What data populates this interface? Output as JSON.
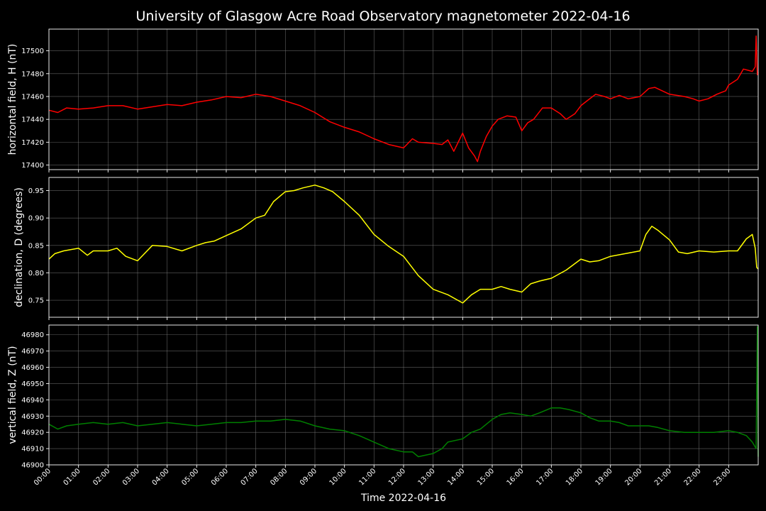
{
  "chart_data": {
    "type": "line",
    "title": "University of Glasgow Acre Road Observatory magnetometer 2022-04-16",
    "xlabel": "Time 2022-04-16",
    "x_ticks": [
      "00:00",
      "01:00",
      "02:00",
      "03:00",
      "04:00",
      "05:00",
      "06:00",
      "07:00",
      "08:00",
      "09:00",
      "10:00",
      "11:00",
      "12:00",
      "13:00",
      "14:00",
      "15:00",
      "16:00",
      "17:00",
      "18:00",
      "19:00",
      "20:00",
      "21:00",
      "22:00",
      "23:00"
    ],
    "xlim_hours": [
      0,
      24
    ],
    "grid": true,
    "background": "#000000",
    "panels": [
      {
        "ylabel": "horizontal field, H (nT)",
        "color": "#ff0000",
        "ylim": [
          17396,
          17519
        ],
        "yticks": [
          "17400",
          "17420",
          "17440",
          "17460",
          "17480",
          "17500"
        ],
        "series": [
          {
            "x": [
              0,
              0.3,
              0.6,
              1,
              1.5,
              2,
              2.5,
              3,
              3.5,
              4,
              4.5,
              5,
              5.5,
              6,
              6.5,
              7,
              7.5,
              8,
              8.5,
              9,
              9.5,
              10,
              10.5,
              11,
              11.5,
              12,
              12.3,
              12.5,
              13,
              13.3,
              13.5,
              13.7,
              14,
              14.2,
              14.4,
              14.5,
              14.6,
              14.8,
              15,
              15.2,
              15.5,
              15.8,
              16,
              16.2,
              16.4,
              16.7,
              17,
              17.3,
              17.5,
              17.8,
              18,
              18.2,
              18.5,
              18.8,
              19,
              19.3,
              19.6,
              20,
              20.3,
              20.5,
              21,
              21.5,
              21.8,
              22,
              22.3,
              22.6,
              22.9,
              23,
              23.3,
              23.5,
              23.8,
              23.9,
              23.93,
              23.97,
              24
            ],
            "y": [
              17448,
              17446,
              17450,
              17449,
              17450,
              17452,
              17452,
              17449,
              17451,
              17453,
              17452,
              17455,
              17457,
              17460,
              17459,
              17462,
              17460,
              17456,
              17452,
              17446,
              17438,
              17433,
              17429,
              17423,
              17418,
              17415,
              17423,
              17420,
              17419,
              17418,
              17422,
              17412,
              17428,
              17415,
              17408,
              17403,
              17412,
              17425,
              17434,
              17440,
              17443,
              17442,
              17430,
              17437,
              17440,
              17450,
              17450,
              17445,
              17440,
              17445,
              17452,
              17456,
              17462,
              17460,
              17458,
              17461,
              17458,
              17460,
              17467,
              17468,
              17462,
              17460,
              17458,
              17456,
              17458,
              17462,
              17465,
              17470,
              17475,
              17484,
              17482,
              17486,
              17513,
              17479,
              17481
            ]
          }
        ]
      },
      {
        "ylabel": "declination, D (degrees)",
        "color": "#ffff00",
        "ylim": [
          0.719,
          0.974
        ],
        "yticks": [
          "0.75",
          "0.80",
          "0.85",
          "0.90",
          "0.95"
        ],
        "series": [
          {
            "x": [
              0,
              0.2,
              0.5,
              1,
              1.3,
              1.5,
              2,
              2.3,
              2.6,
              3,
              3.5,
              4,
              4.5,
              5,
              5.3,
              5.6,
              6,
              6.5,
              7,
              7.3,
              7.6,
              8,
              8.3,
              8.6,
              9,
              9.3,
              9.6,
              10,
              10.5,
              11,
              11.5,
              12,
              12.5,
              13,
              13.5,
              14,
              14.3,
              14.6,
              15,
              15.3,
              15.6,
              16,
              16.3,
              16.6,
              17,
              17.5,
              18,
              18.3,
              18.6,
              19,
              19.5,
              20,
              20.2,
              20.4,
              20.6,
              21,
              21.3,
              21.6,
              22,
              22.5,
              23,
              23.3,
              23.6,
              23.8,
              23.9,
              23.95,
              24
            ],
            "y": [
              0.825,
              0.835,
              0.84,
              0.845,
              0.832,
              0.84,
              0.84,
              0.845,
              0.83,
              0.822,
              0.85,
              0.848,
              0.84,
              0.85,
              0.855,
              0.858,
              0.868,
              0.88,
              0.9,
              0.905,
              0.93,
              0.948,
              0.95,
              0.955,
              0.96,
              0.955,
              0.948,
              0.93,
              0.905,
              0.87,
              0.848,
              0.83,
              0.795,
              0.77,
              0.76,
              0.745,
              0.76,
              0.77,
              0.77,
              0.775,
              0.77,
              0.765,
              0.78,
              0.785,
              0.79,
              0.805,
              0.825,
              0.82,
              0.822,
              0.83,
              0.835,
              0.84,
              0.87,
              0.885,
              0.878,
              0.86,
              0.838,
              0.835,
              0.84,
              0.838,
              0.84,
              0.84,
              0.862,
              0.87,
              0.845,
              0.81,
              0.807
            ]
          }
        ]
      },
      {
        "ylabel": "vertical field, Z (nT)",
        "color": "#008000",
        "ylim": [
          46900,
          46986
        ],
        "yticks": [
          "46900",
          "46910",
          "46920",
          "46930",
          "46940",
          "46950",
          "46960",
          "46970",
          "46980"
        ],
        "series": [
          {
            "x": [
              0,
              0.3,
              0.6,
              1,
              1.5,
              2,
              2.5,
              3,
              3.5,
              4,
              4.5,
              5,
              5.5,
              6,
              6.5,
              7,
              7.5,
              8,
              8.5,
              9,
              9.5,
              10,
              10.5,
              11,
              11.5,
              12,
              12.3,
              12.5,
              13,
              13.3,
              13.5,
              14,
              14.3,
              14.6,
              15,
              15.3,
              15.6,
              16,
              16.3,
              16.6,
              17,
              17.3,
              17.6,
              18,
              18.3,
              18.6,
              19,
              19.3,
              19.6,
              20,
              20.3,
              20.6,
              21,
              21.5,
              22,
              22.5,
              23,
              23.3,
              23.6,
              23.8,
              23.9,
              23.93,
              23.97,
              24
            ],
            "y": [
              46925,
              46922,
              46924,
              46925,
              46926,
              46925,
              46926,
              46924,
              46925,
              46926,
              46925,
              46924,
              46925,
              46926,
              46926,
              46927,
              46927,
              46928,
              46927,
              46924,
              46922,
              46921,
              46918,
              46914,
              46910,
              46908,
              46908,
              46905,
              46907,
              46910,
              46914,
              46916,
              46920,
              46922,
              46928,
              46931,
              46932,
              46931,
              46930,
              46932,
              46935,
              46935,
              46934,
              46932,
              46929,
              46927,
              46927,
              46926,
              46924,
              46924,
              46924,
              46923,
              46921,
              46920,
              46920,
              46920,
              46921,
              46920,
              46918,
              46914,
              46911,
              46910,
              46985,
              46905
            ]
          }
        ]
      }
    ]
  }
}
